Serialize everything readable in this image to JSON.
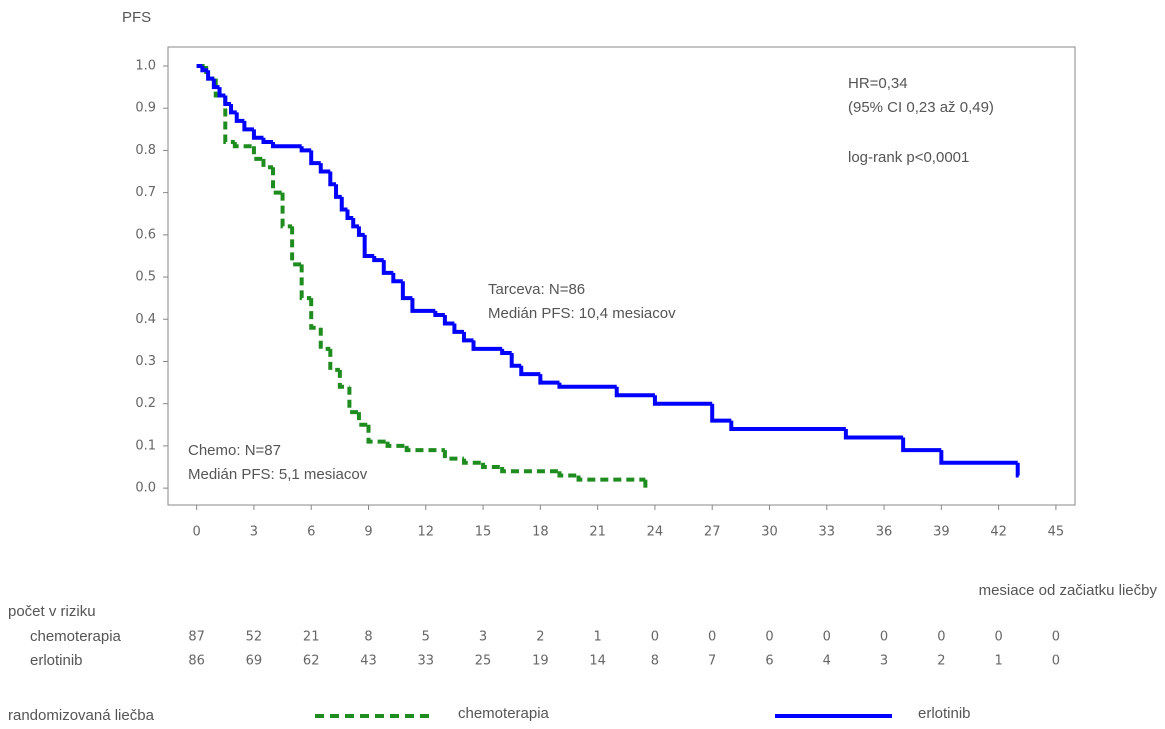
{
  "chart_data": {
    "type": "step",
    "y_label": "PFS",
    "x_label": "mesiace od začiatku liečby",
    "xlim": [
      -1.5,
      46
    ],
    "ylim": [
      -0.04,
      1.045
    ],
    "xticks": [
      0,
      3,
      6,
      9,
      12,
      15,
      18,
      21,
      24,
      27,
      30,
      33,
      36,
      39,
      42,
      45
    ],
    "yticks": [
      {
        "value": 0,
        "label": "0.0"
      },
      0.1,
      0.2,
      0.3,
      0.4,
      0.5,
      0.6,
      0.7,
      0.8,
      0.9,
      {
        "value": 1,
        "label": "1.0"
      }
    ],
    "annotations": [
      "HR=0,34",
      "(95% CI 0,23 až 0,49)",
      "log-rank p<0,0001",
      "Tarceva: N=86",
      "Medián PFS: 10,4 mesiacov",
      "Chemo: N=87",
      "Medián PFS: 5,1 mesiacov"
    ],
    "risk_title": "počet v riziku",
    "legend_title": "randomizovaná liečba",
    "series": [
      {
        "name": "chemoterapia",
        "color": "#1e8c1e",
        "style": "dashed",
        "x": [
          0,
          0.5,
          1,
          1.5,
          2,
          3,
          3.5,
          4,
          4.5,
          5,
          5.5,
          6,
          6.5,
          7,
          7.5,
          8,
          8.5,
          9,
          10,
          11,
          13,
          14,
          15,
          16,
          19,
          20,
          23.5
        ],
        "values": [
          1.0,
          0.97,
          0.93,
          0.82,
          0.81,
          0.78,
          0.76,
          0.7,
          0.62,
          0.53,
          0.45,
          0.38,
          0.33,
          0.28,
          0.24,
          0.18,
          0.15,
          0.11,
          0.1,
          0.09,
          0.07,
          0.06,
          0.05,
          0.04,
          0.03,
          0.02,
          0.0
        ],
        "at_risk": [
          87,
          52,
          21,
          8,
          5,
          3,
          2,
          1,
          0,
          0,
          0,
          0,
          0,
          0,
          0,
          0
        ]
      },
      {
        "name": "erlotinib",
        "color": "#0000ff",
        "style": "solid",
        "x": [
          0,
          0.3,
          0.6,
          0.9,
          1.2,
          1.5,
          1.8,
          2.1,
          2.5,
          3,
          3.5,
          4,
          5.5,
          6,
          6.5,
          7,
          7.3,
          7.6,
          7.9,
          8.2,
          8.5,
          8.8,
          9.3,
          9.8,
          10.3,
          10.8,
          11.3,
          12.5,
          13,
          13.5,
          14,
          14.5,
          16,
          16.5,
          17,
          18,
          19,
          22,
          24,
          27,
          28,
          34,
          37,
          39,
          43
        ],
        "values": [
          1.0,
          0.99,
          0.97,
          0.95,
          0.93,
          0.91,
          0.89,
          0.87,
          0.85,
          0.83,
          0.82,
          0.81,
          0.8,
          0.77,
          0.75,
          0.72,
          0.69,
          0.66,
          0.64,
          0.62,
          0.6,
          0.55,
          0.54,
          0.51,
          0.49,
          0.45,
          0.42,
          0.41,
          0.39,
          0.37,
          0.35,
          0.33,
          0.32,
          0.29,
          0.27,
          0.25,
          0.24,
          0.22,
          0.2,
          0.16,
          0.14,
          0.12,
          0.09,
          0.06,
          0.03
        ],
        "at_risk": [
          86,
          69,
          62,
          43,
          33,
          25,
          19,
          14,
          8,
          7,
          6,
          4,
          3,
          2,
          1,
          0
        ]
      }
    ]
  }
}
